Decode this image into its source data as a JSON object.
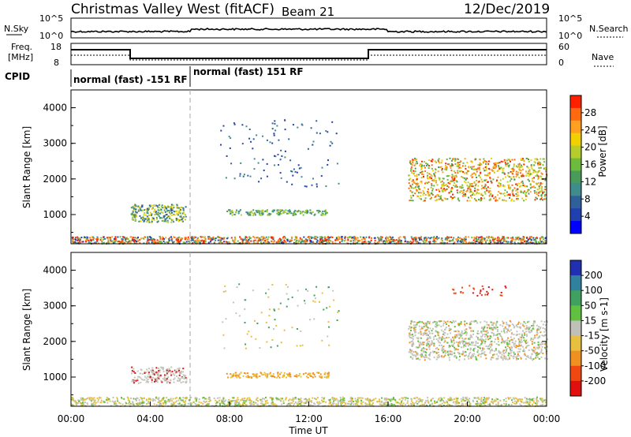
{
  "header": {
    "station": "Christmas Valley West (fitACF)",
    "beam": "Beam 21",
    "date": "12/Dec/2019"
  },
  "nsky_panel": {
    "left_label": "N.Sky",
    "right_label": "N.Search",
    "left_ticks": [
      "10^5",
      "10^0"
    ],
    "right_ticks": [
      "10^5",
      "10^0"
    ]
  },
  "freq_panel": {
    "left_label_1": "Freq.",
    "left_label_2": "[MHz]",
    "right_label": "Nave",
    "left_ticks": [
      "18",
      "8"
    ],
    "right_ticks": [
      "60",
      "0"
    ]
  },
  "cpid": {
    "label": "CPID",
    "segments": [
      "normal (fast) -151 RF",
      "normal (fast) 151 RF"
    ]
  },
  "chart_data": [
    {
      "type": "heatmap",
      "name": "power",
      "ylabel": "Slant Range [km]",
      "yticks": [
        "1000",
        "2000",
        "3000",
        "4000"
      ],
      "ylim": [
        180,
        4500
      ],
      "xlim_hours": [
        0,
        24
      ],
      "colorbar": {
        "label": "Power [dB]",
        "ticks": [
          "4",
          "8",
          "12",
          "16",
          "20",
          "24",
          "28"
        ],
        "colors": [
          "#0000ff",
          "#2040b0",
          "#30609a",
          "#3f8c8c",
          "#4a9a5a",
          "#6dbb3c",
          "#b5cd2c",
          "#f0d000",
          "#ffa020",
          "#ff6a10",
          "#ff2000"
        ]
      }
    },
    {
      "type": "heatmap",
      "name": "velocity",
      "ylabel": "Slant Range [km]",
      "yticks": [
        "1000",
        "2000",
        "3000",
        "4000"
      ],
      "ylim": [
        180,
        4500
      ],
      "xlim_hours": [
        0,
        24
      ],
      "xlabel": "Time UT",
      "xticks": [
        "00:00",
        "04:00",
        "08:00",
        "12:00",
        "16:00",
        "20:00",
        "00:00"
      ],
      "colorbar": {
        "label": "Velocity [m s-1]",
        "ticks": [
          "200",
          "100",
          "50",
          "15",
          "-15",
          "-50",
          "-100",
          "-200"
        ],
        "colors": [
          "#2030b0",
          "#3080a0",
          "#40a060",
          "#60c040",
          "#c0c0b8",
          "#e8c040",
          "#f09020",
          "#f04810",
          "#e01010"
        ]
      }
    }
  ],
  "colors": {
    "background": "#ffffff",
    "axes": "#000000",
    "gray_scatter": "#c4c4bc"
  }
}
